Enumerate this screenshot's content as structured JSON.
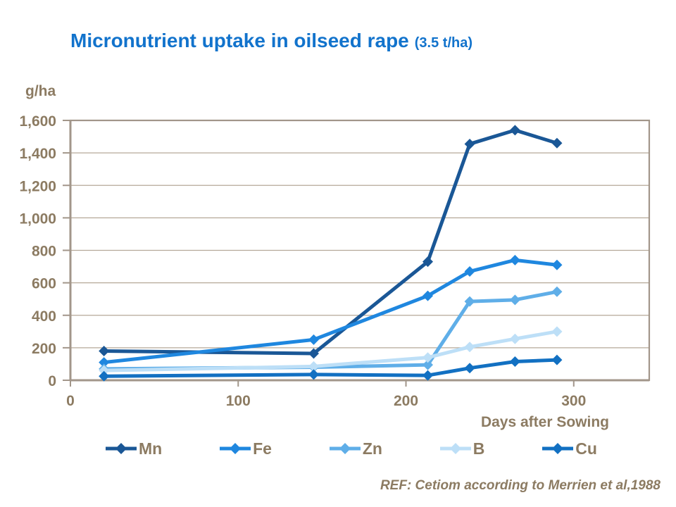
{
  "title": {
    "main": "Micronutrient uptake in oilseed rape",
    "suffix": "(3.5 t/ha)"
  },
  "colors": {
    "title_blue": "#1273CC",
    "axis_text": "#8C7B62",
    "gridline": "#B5A898",
    "frame": "#A2968A",
    "background": "#FFFFFF"
  },
  "footer": {
    "ref_text": "REF: Cetiom according to Merrien et al,1988"
  },
  "chart_data": {
    "type": "line",
    "title": "Micronutrient uptake in oilseed rape (3.5 t/ha)",
    "xlabel": "Days after Sowing",
    "ylabel": "g/ha",
    "x": [
      20,
      145,
      213,
      238,
      265,
      290
    ],
    "xlim": [
      0,
      345
    ],
    "ylim": [
      0,
      1600
    ],
    "grid": "horizontal",
    "legend_position": "bottom",
    "marker": "diamond",
    "x_ticks": [
      {
        "value": 0,
        "label": "0"
      },
      {
        "value": 100,
        "label": "100"
      },
      {
        "value": 200,
        "label": "200"
      },
      {
        "value": 300,
        "label": "300"
      }
    ],
    "y_ticks": [
      {
        "value": 0,
        "label": "0"
      },
      {
        "value": 200,
        "label": "200"
      },
      {
        "value": 400,
        "label": "400"
      },
      {
        "value": 600,
        "label": "600"
      },
      {
        "value": 800,
        "label": "800"
      },
      {
        "value": 1000,
        "label": "1,000"
      },
      {
        "value": 1200,
        "label": "1,200"
      },
      {
        "value": 1400,
        "label": "1,400"
      },
      {
        "value": 1600,
        "label": "1,600"
      }
    ],
    "series": [
      {
        "name": "Mn",
        "color": "#1A5796",
        "values": [
          180,
          165,
          730,
          1455,
          1540,
          1460
        ]
      },
      {
        "name": "Fe",
        "color": "#1F87DF",
        "values": [
          110,
          250,
          520,
          670,
          740,
          710
        ]
      },
      {
        "name": "Zn",
        "color": "#5FAEE8",
        "values": [
          70,
          80,
          95,
          485,
          495,
          545
        ]
      },
      {
        "name": "B",
        "color": "#BDDFF7",
        "values": [
          60,
          85,
          140,
          205,
          255,
          300
        ]
      },
      {
        "name": "Cu",
        "color": "#1270C2",
        "values": [
          25,
          35,
          30,
          75,
          115,
          125
        ]
      }
    ]
  }
}
